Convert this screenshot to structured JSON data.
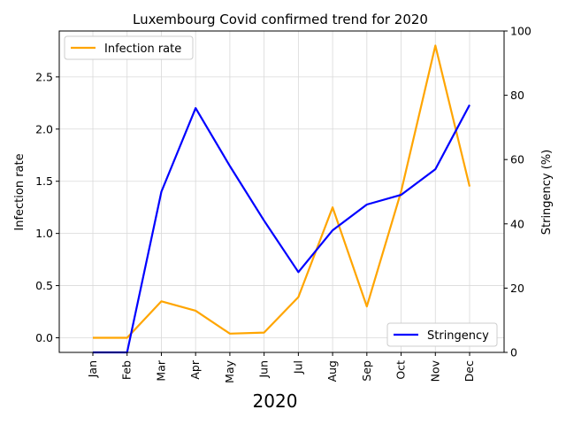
{
  "chart_data": {
    "type": "line",
    "title": "Luxembourg Covid confirmed trend for 2020",
    "xlabel": "2020",
    "categories": [
      "Jan",
      "Feb",
      "Mar",
      "Apr",
      "May",
      "Jun",
      "Jul",
      "Aug",
      "Sep",
      "Oct",
      "Nov",
      "Dec"
    ],
    "y_left": {
      "label": "Infection rate",
      "ticks": [
        "0.0",
        "0.5",
        "1.0",
        "1.5",
        "2.0",
        "2.5"
      ],
      "ylim": [
        -0.14,
        2.94
      ]
    },
    "y_right": {
      "label": "Stringency (%)",
      "ticks": [
        "0",
        "20",
        "40",
        "60",
        "80",
        "100"
      ],
      "ylim": [
        0,
        100
      ]
    },
    "series": [
      {
        "name": "Infection rate",
        "axis": "left",
        "color": "#FFA500",
        "values": [
          0.0,
          0.0,
          0.35,
          0.26,
          0.04,
          0.05,
          0.39,
          1.25,
          0.3,
          1.4,
          2.8,
          1.45
        ]
      },
      {
        "name": "Stringency",
        "axis": "right",
        "color": "#0000FF",
        "values": [
          0,
          0,
          50,
          76,
          58,
          41,
          25,
          38,
          46,
          49,
          57,
          77
        ]
      }
    ],
    "legends": [
      {
        "placement": "top-left",
        "series": "Infection rate"
      },
      {
        "placement": "bottom-right",
        "series": "Stringency"
      }
    ],
    "grid": true
  }
}
